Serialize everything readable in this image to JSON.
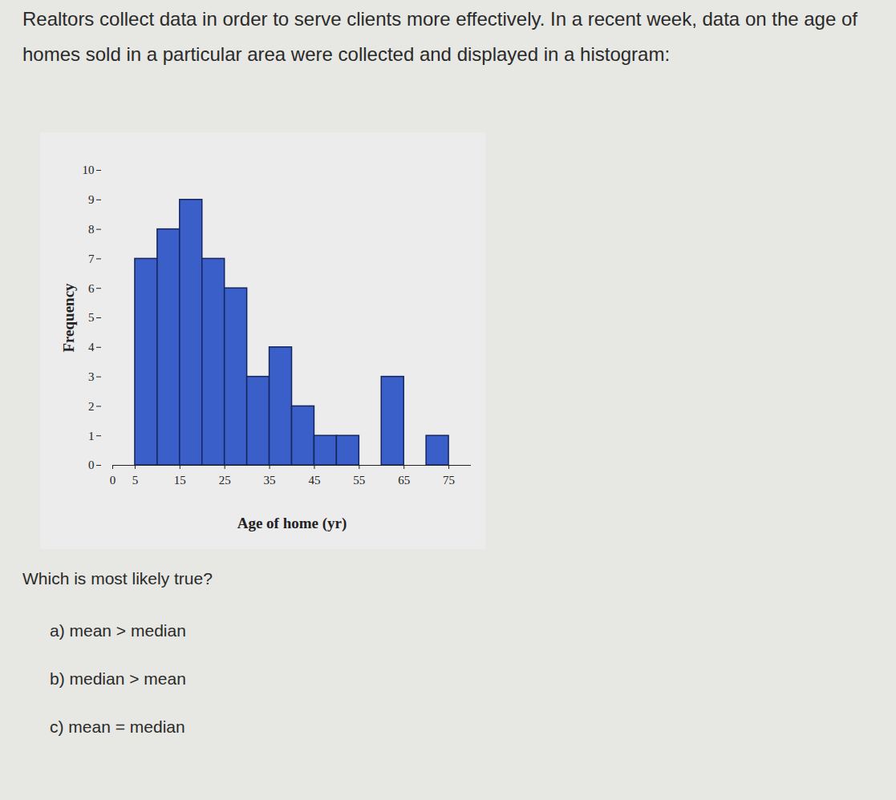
{
  "header": {
    "text": "Realtors collect data in order to serve clients more effectively. In a recent week, data on the age of homes sold in a particular area were collected and displayed in a histogram:"
  },
  "chart_data": {
    "type": "histogram",
    "x_label": "Age of home (yr)",
    "y_label": "Frequency",
    "bins": [
      5,
      10,
      15,
      20,
      25,
      30,
      35,
      40,
      45,
      50,
      55,
      60,
      65,
      70,
      75
    ],
    "values": [
      7,
      8,
      9,
      7,
      6,
      3,
      4,
      2,
      1,
      1,
      0,
      3,
      0,
      1
    ],
    "color": "#3b5fc9",
    "xlim": [
      0,
      80
    ],
    "xticks": [
      0,
      5,
      15,
      25,
      35,
      45,
      55,
      65,
      75
    ],
    "ylim": [
      0,
      10
    ],
    "yticks": [
      0,
      1,
      2,
      3,
      4,
      5,
      6,
      7,
      8,
      9,
      10
    ],
    "grid": false
  },
  "question": {
    "prompt": "Which is most likely true?",
    "options": [
      "a) mean > median",
      "b) median > mean",
      "c) mean = median"
    ]
  }
}
